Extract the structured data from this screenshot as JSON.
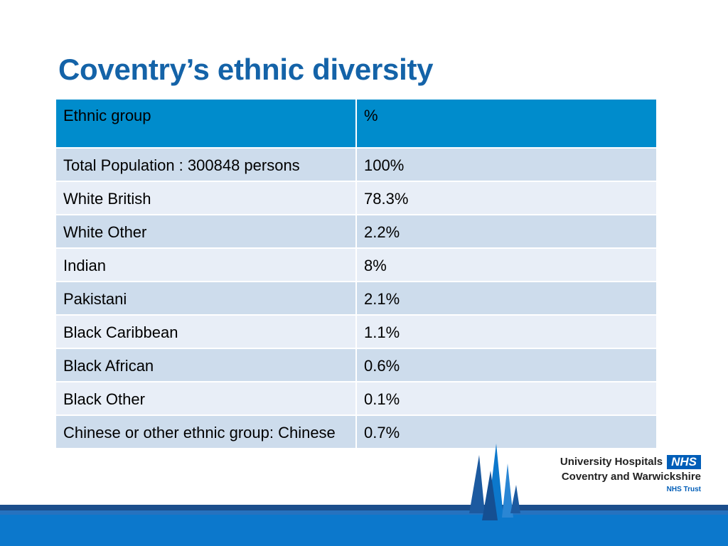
{
  "slide": {
    "title": "Coventry’s ethnic diversity"
  },
  "table": {
    "headers": [
      "Ethnic group",
      "%"
    ],
    "rows": [
      {
        "group": "Total Population : 300848 persons",
        "percent": "100%"
      },
      {
        "group": "White British",
        "percent": "78.3%"
      },
      {
        "group": "White Other",
        "percent": "2.2%"
      },
      {
        "group": "Indian",
        "percent": "8%"
      },
      {
        "group": "Pakistani",
        "percent": "2.1%"
      },
      {
        "group": "Black Caribbean",
        "percent": "1.1%"
      },
      {
        "group": "Black African",
        "percent": "0.6%"
      },
      {
        "group": "Black Other",
        "percent": "0.1%"
      },
      {
        "group": "Chinese or other ethnic group: Chinese",
        "percent": "0.7%"
      }
    ]
  },
  "logo": {
    "line1": "University Hospitals",
    "badge": "NHS",
    "line2": "Coventry and Warwickshire",
    "line3": "NHS Trust"
  },
  "colors": {
    "title": "#1463a8",
    "header_bg": "#008ccc",
    "row_odd": "#cddcec",
    "row_even": "#e8eef7",
    "footer_band": "#0c78cc",
    "nhs_blue": "#005eb8"
  },
  "icons": [
    "cathedral-spires-icon"
  ]
}
